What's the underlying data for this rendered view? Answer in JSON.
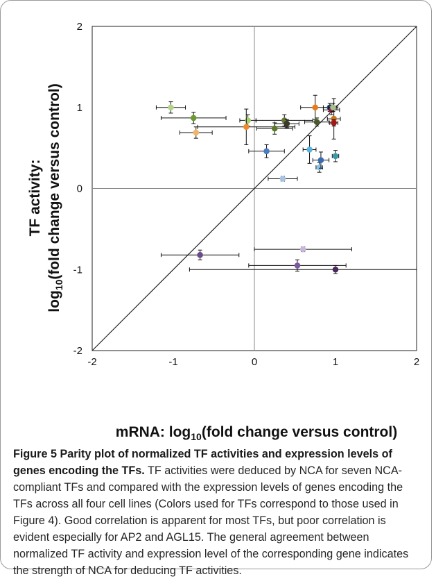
{
  "chart_data": {
    "type": "scatter",
    "title": "",
    "xlabel": "mRNA: log10(fold change versus control)",
    "xlabel_main": "mRNA: log",
    "xlabel_sub": "10",
    "xlabel_rest": "(fold change versus control)",
    "ylabel_line1": "TF activity:",
    "ylabel_line2_main": "log",
    "ylabel_line2_sub": "10",
    "ylabel_line2_rest": "(fold change versus control)",
    "xlim": [
      -2,
      2
    ],
    "ylim": [
      -2,
      2
    ],
    "xticks": [
      "-2",
      "-1",
      "0",
      "1",
      "2"
    ],
    "yticks": [
      "2",
      "1",
      "0",
      "-1",
      "-2"
    ],
    "parity_line": true,
    "points": [
      {
        "x": -1.03,
        "y": 1.0,
        "xerr": 0.18,
        "yerr": 0.07,
        "color": "#b5d28a"
      },
      {
        "x": -0.75,
        "y": 0.87,
        "xerr": 0.4,
        "yerr": 0.07,
        "color": "#6b9a2e"
      },
      {
        "x": -0.72,
        "y": 0.69,
        "xerr": 0.2,
        "yerr": 0.07,
        "color": "#f5b36a"
      },
      {
        "x": -0.67,
        "y": -0.82,
        "xerr": 0.48,
        "yerr": 0.06,
        "color": "#6a4a8a"
      },
      {
        "x": -0.08,
        "y": 0.84,
        "xerr": 0.1,
        "yerr": 0.07,
        "color": "#a6cf6a"
      },
      {
        "x": -0.1,
        "y": 0.76,
        "xerr": 0.6,
        "yerr": 0.22,
        "color": "#f08a2e"
      },
      {
        "x": 0.15,
        "y": 0.46,
        "xerr": 0.22,
        "yerr": 0.08,
        "color": "#4a7dbd"
      },
      {
        "x": 0.25,
        "y": 0.74,
        "xerr": 0.22,
        "yerr": 0.07,
        "color": "#5a7a2a"
      },
      {
        "x": 0.35,
        "y": 0.12,
        "xerr": 0.18,
        "yerr": 0.03,
        "color": "#a8c4e2"
      },
      {
        "x": 0.37,
        "y": 0.84,
        "xerr": 0.35,
        "yerr": 0.07,
        "color": "#6a7a3a"
      },
      {
        "x": 0.4,
        "y": 0.8,
        "xerr": 0.15,
        "yerr": 0.05,
        "color": "#3a3a2a"
      },
      {
        "x": 0.6,
        "y": -0.75,
        "xerr": 0.6,
        "yerr": 0.03,
        "color": "#c8b6dc"
      },
      {
        "x": 0.53,
        "y": -0.95,
        "xerr": 0.6,
        "yerr": 0.07,
        "color": "#7a5a9a"
      },
      {
        "x": 0.68,
        "y": 0.48,
        "xerr": 0.08,
        "yerr": 0.17,
        "color": "#5ab4d8"
      },
      {
        "x": 0.75,
        "y": 1.0,
        "xerr": 0.18,
        "yerr": 0.15,
        "color": "#e87a1a"
      },
      {
        "x": 0.77,
        "y": 0.82,
        "xerr": 0.15,
        "yerr": 0.05,
        "color": "#4a5a2a"
      },
      {
        "x": 0.8,
        "y": 0.26,
        "xerr": 0.04,
        "yerr": 0.06,
        "color": "#8ac4e2"
      },
      {
        "x": 0.82,
        "y": 0.35,
        "xerr": 0.1,
        "yerr": 0.1,
        "color": "#3a6ab0"
      },
      {
        "x": 0.93,
        "y": 1.0,
        "xerr": 0.08,
        "yerr": 0.05,
        "color": "#1f4e8a"
      },
      {
        "x": 0.95,
        "y": 0.97,
        "xerr": 0.1,
        "yerr": 0.06,
        "color": "#8a1a3a"
      },
      {
        "x": 0.98,
        "y": 0.86,
        "xerr": 0.08,
        "yerr": 0.25,
        "color": "#c8741a"
      },
      {
        "x": 0.98,
        "y": 0.81,
        "xerr": 0.05,
        "yerr": 0.04,
        "color": "#a01a1a"
      },
      {
        "x": 0.97,
        "y": 1.0,
        "xerr": 0.06,
        "yerr": 0.05,
        "color": "#a8c08a"
      },
      {
        "x": 1.0,
        "y": 0.4,
        "xerr": 0.04,
        "yerr": 0.07,
        "color": "#3a98a8"
      },
      {
        "x": 1.0,
        "y": -1.0,
        "xerr": 1.8,
        "yerr": 0.05,
        "color": "#4a2a5a"
      }
    ]
  },
  "caption": {
    "bold": "Figure 5 Parity plot of normalized TF activities and expression levels of genes encoding the TFs.",
    "text": " TF activities were deduced by NCA for seven NCA-compliant TFs and compared with the expression levels of genes encoding the TFs across all four cell lines (Colors used for TFs correspond to those used in Figure 4). Good correlation is apparent for most TFs, but poor correlation is evident especially for AP2 and AGL15. The general agreement between normalized TF activity and expression level of the corresponding gene indicates the strength of NCA for deducing TF activities."
  }
}
